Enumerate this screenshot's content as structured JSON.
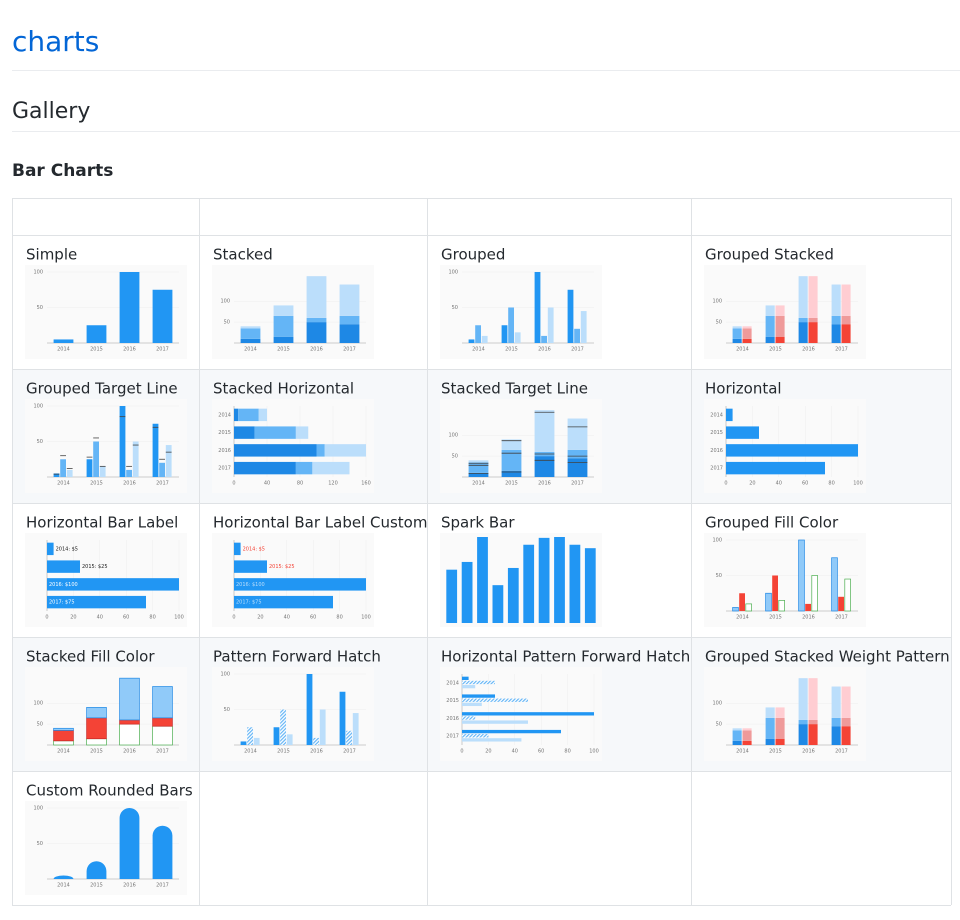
{
  "page": {
    "title": "charts"
  },
  "section": {
    "title": "Gallery"
  },
  "subsection": {
    "title": "Bar Charts"
  },
  "table": {
    "cells": [
      {
        "title": "Simple",
        "thumb": {
          "type": "bar",
          "orientation": "vertical",
          "layout": "single",
          "categories": [
            "2014",
            "2015",
            "2016",
            "2017"
          ],
          "ylim": [
            0,
            100
          ],
          "yticks": [
            50,
            100
          ],
          "series": [
            {
              "color": "#2196f3",
              "values": [
                5,
                25,
                100,
                75
              ]
            }
          ]
        }
      },
      {
        "title": "Stacked",
        "thumb": {
          "type": "bar",
          "orientation": "vertical",
          "layout": "stacked",
          "categories": [
            "2014",
            "2015",
            "2016",
            "2017"
          ],
          "ylim": [
            0,
            170
          ],
          "yticks": [
            50,
            100
          ],
          "series": [
            {
              "color": "#1e88e5",
              "values": [
                10,
                15,
                50,
                45
              ]
            },
            {
              "color": "#64b5f6",
              "values": [
                25,
                50,
                10,
                20
              ]
            },
            {
              "color": "#bbdefb",
              "values": [
                5,
                25,
                100,
                75
              ]
            }
          ]
        }
      },
      {
        "title": "Grouped",
        "thumb": {
          "type": "bar",
          "orientation": "vertical",
          "layout": "grouped",
          "categories": [
            "2014",
            "2015",
            "2016",
            "2017"
          ],
          "ylim": [
            0,
            100
          ],
          "yticks": [
            50,
            100
          ],
          "series": [
            {
              "color": "#2196f3",
              "values": [
                5,
                25,
                100,
                75
              ]
            },
            {
              "color": "#64b5f6",
              "values": [
                25,
                50,
                10,
                20
              ]
            },
            {
              "color": "#bbdefb",
              "values": [
                10,
                15,
                50,
                45
              ]
            }
          ]
        }
      },
      {
        "title": "Grouped Stacked",
        "thumb": {
          "type": "bar",
          "orientation": "vertical",
          "layout": "groupstack",
          "categories": [
            "2014",
            "2015",
            "2016",
            "2017"
          ],
          "ylim": [
            0,
            170
          ],
          "yticks": [
            50,
            100
          ],
          "series": [
            {
              "stack": "A",
              "color": "#1e88e5",
              "values": [
                10,
                15,
                50,
                45
              ]
            },
            {
              "stack": "A",
              "color": "#64b5f6",
              "values": [
                25,
                50,
                10,
                20
              ]
            },
            {
              "stack": "A",
              "color": "#bbdefb",
              "values": [
                5,
                25,
                100,
                75
              ]
            },
            {
              "stack": "B",
              "color": "#f44336",
              "values": [
                10,
                15,
                50,
                45
              ]
            },
            {
              "stack": "B",
              "color": "#ef9a9a",
              "values": [
                25,
                50,
                10,
                20
              ]
            },
            {
              "stack": "B",
              "color": "#ffcdd2",
              "values": [
                5,
                25,
                100,
                75
              ]
            }
          ]
        }
      },
      {
        "title": "Grouped Target Line",
        "thumb": {
          "type": "bar",
          "orientation": "vertical",
          "layout": "grouped",
          "categories": [
            "2014",
            "2015",
            "2016",
            "2017"
          ],
          "ylim": [
            0,
            100
          ],
          "yticks": [
            50,
            100
          ],
          "series": [
            {
              "color": "#2196f3",
              "values": [
                5,
                25,
                100,
                75
              ]
            },
            {
              "color": "#64b5f6",
              "values": [
                25,
                50,
                10,
                20
              ]
            },
            {
              "color": "#bbdefb",
              "values": [
                10,
                15,
                50,
                45
              ]
            },
            {
              "color": "#424242",
              "target": true,
              "values": [
                4,
                28,
                85,
                70
              ]
            },
            {
              "color": "#424242",
              "target": true,
              "values": [
                30,
                55,
                15,
                25
              ]
            },
            {
              "color": "#424242",
              "target": true,
              "values": [
                12,
                15,
                45,
                35
              ]
            }
          ]
        }
      },
      {
        "title": "Stacked Horizontal",
        "thumb": {
          "type": "bar",
          "orientation": "horizontal",
          "layout": "stacked",
          "categories": [
            "2014",
            "2015",
            "2016",
            "2017"
          ],
          "xlim": [
            0,
            160
          ],
          "xticks": [
            0,
            40,
            80,
            120,
            160
          ],
          "series": [
            {
              "color": "#1e88e5",
              "values": [
                5,
                25,
                100,
                75
              ]
            },
            {
              "color": "#64b5f6",
              "values": [
                25,
                50,
                10,
                20
              ]
            },
            {
              "color": "#bbdefb",
              "values": [
                10,
                15,
                50,
                45
              ]
            }
          ]
        }
      },
      {
        "title": "Stacked Target Line",
        "thumb": {
          "type": "bar",
          "orientation": "vertical",
          "layout": "stacked",
          "categories": [
            "2014",
            "2015",
            "2016",
            "2017"
          ],
          "ylim": [
            0,
            170
          ],
          "yticks": [
            50,
            100
          ],
          "series": [
            {
              "color": "#1e88e5",
              "values": [
                10,
                15,
                50,
                45
              ]
            },
            {
              "color": "#64b5f6",
              "values": [
                25,
                50,
                10,
                20
              ]
            },
            {
              "color": "#bbdefb",
              "values": [
                5,
                25,
                100,
                75
              ]
            },
            {
              "color": "#424242",
              "target": true,
              "values": [
                8,
                12,
                40,
                35
              ]
            },
            {
              "color": "#424242",
              "target": true,
              "values": [
                20,
                45,
                15,
                15
              ]
            },
            {
              "color": "#424242",
              "target": true,
              "values": [
                5,
                30,
                100,
                70
              ]
            }
          ]
        }
      },
      {
        "title": "Horizontal",
        "thumb": {
          "type": "bar",
          "orientation": "horizontal",
          "layout": "single",
          "categories": [
            "2014",
            "2015",
            "2016",
            "2017"
          ],
          "xlim": [
            0,
            100
          ],
          "xticks": [
            0,
            20,
            40,
            60,
            80,
            100
          ],
          "series": [
            {
              "color": "#2196f3",
              "values": [
                5,
                25,
                100,
                75
              ]
            }
          ]
        }
      },
      {
        "title": "Horizontal Bar Label",
        "thumb": {
          "type": "bar",
          "orientation": "horizontal",
          "layout": "single",
          "xlim": [
            0,
            100
          ],
          "xticks": [
            0,
            20,
            40,
            60,
            80,
            100
          ],
          "series": [
            {
              "color": "#2196f3",
              "values": [
                5,
                25,
                100,
                75
              ],
              "value_labels": [
                "2014: $5",
                "2015: $25",
                "2016: $100",
                "2017: $75"
              ]
            }
          ]
        }
      },
      {
        "title": "Horizontal Bar Label Custom",
        "thumb": {
          "type": "bar",
          "orientation": "horizontal",
          "layout": "single",
          "label_style": "custom",
          "xlim": [
            0,
            100
          ],
          "xticks": [
            0,
            20,
            40,
            60,
            80,
            100
          ],
          "series": [
            {
              "color": "#2196f3",
              "values": [
                5,
                25,
                100,
                75
              ],
              "value_labels": [
                "2014: $5",
                "2015: $25",
                "2016: $100",
                "2017: $75"
              ]
            }
          ]
        }
      },
      {
        "title": "Spark Bar",
        "thumb": {
          "type": "bar",
          "orientation": "vertical",
          "layout": "single",
          "ylim": [
            0,
            100
          ],
          "series": [
            {
              "color": "#2196f3",
              "values": [
                62,
                71,
                100,
                44,
                64,
                91,
                99,
                100,
                91,
                87
              ]
            }
          ]
        }
      },
      {
        "title": "Grouped Fill Color",
        "thumb": {
          "type": "bar",
          "orientation": "vertical",
          "layout": "grouped",
          "categories": [
            "2014",
            "2015",
            "2016",
            "2017"
          ],
          "ylim": [
            0,
            100
          ],
          "yticks": [
            50,
            100
          ],
          "series": [
            {
              "color": "#90caf9",
              "stroke": "#1e88e5",
              "values": [
                5,
                25,
                100,
                75
              ]
            },
            {
              "color": "#f44336",
              "values": [
                25,
                50,
                10,
                20
              ]
            },
            {
              "color": "#ffffff",
              "stroke": "#4caf50",
              "values": [
                10,
                15,
                50,
                45
              ]
            }
          ]
        }
      },
      {
        "title": "Stacked Fill Color",
        "thumb": {
          "type": "bar",
          "orientation": "vertical",
          "layout": "stacked",
          "categories": [
            "2014",
            "2015",
            "2016",
            "2017"
          ],
          "ylim": [
            0,
            170
          ],
          "yticks": [
            50,
            100
          ],
          "series": [
            {
              "color": "#ffffff",
              "stroke": "#4caf50",
              "values": [
                10,
                15,
                50,
                45
              ]
            },
            {
              "color": "#f44336",
              "stroke": "#c62828",
              "values": [
                25,
                50,
                10,
                20
              ]
            },
            {
              "color": "#90caf9",
              "stroke": "#1e88e5",
              "values": [
                5,
                25,
                100,
                75
              ]
            }
          ]
        }
      },
      {
        "title": "Pattern Forward Hatch",
        "thumb": {
          "type": "bar",
          "orientation": "vertical",
          "layout": "grouped",
          "categories": [
            "2014",
            "2015",
            "2016",
            "2017"
          ],
          "ylim": [
            0,
            100
          ],
          "yticks": [
            50,
            100
          ],
          "series": [
            {
              "color": "#2196f3",
              "values": [
                5,
                25,
                100,
                75
              ]
            },
            {
              "color": "#64b5f6",
              "pattern": "hatch",
              "values": [
                25,
                50,
                10,
                20
              ]
            },
            {
              "color": "#bbdefb",
              "values": [
                10,
                15,
                50,
                45
              ]
            }
          ]
        }
      },
      {
        "title": "Horizontal Pattern Forward Hatch",
        "thumb": {
          "type": "bar",
          "orientation": "horizontal",
          "layout": "grouped",
          "categories": [
            "2014",
            "2015",
            "2016",
            "2017"
          ],
          "xlim": [
            0,
            100
          ],
          "xticks": [
            0,
            20,
            40,
            60,
            80,
            100
          ],
          "series": [
            {
              "color": "#2196f3",
              "values": [
                5,
                25,
                100,
                75
              ]
            },
            {
              "color": "#64b5f6",
              "pattern": "hatch",
              "values": [
                25,
                50,
                10,
                20
              ]
            },
            {
              "color": "#bbdefb",
              "values": [
                10,
                15,
                50,
                45
              ]
            }
          ]
        }
      },
      {
        "title": "Grouped Stacked Weight Pattern",
        "thumb": {
          "type": "bar",
          "orientation": "vertical",
          "layout": "groupstack",
          "categories": [
            "2014",
            "2015",
            "2016",
            "2017"
          ],
          "ylim": [
            0,
            170
          ],
          "yticks": [
            50,
            100
          ],
          "series": [
            {
              "stack": "A",
              "color": "#1e88e5",
              "values": [
                10,
                15,
                50,
                45
              ]
            },
            {
              "stack": "A",
              "color": "#64b5f6",
              "values": [
                25,
                50,
                10,
                20
              ]
            },
            {
              "stack": "A",
              "color": "#bbdefb",
              "values": [
                5,
                25,
                100,
                75
              ]
            },
            {
              "stack": "B",
              "color": "#f44336",
              "values": [
                10,
                15,
                50,
                45
              ]
            },
            {
              "stack": "B",
              "color": "#ef9a9a",
              "values": [
                25,
                50,
                10,
                20
              ]
            },
            {
              "stack": "B",
              "color": "#ffcdd2",
              "values": [
                5,
                25,
                100,
                75
              ]
            }
          ]
        }
      },
      {
        "title": "Custom Rounded Bars",
        "thumb": {
          "type": "bar",
          "orientation": "vertical",
          "layout": "single",
          "rounded": true,
          "categories": [
            "2014",
            "2015",
            "2016",
            "2017"
          ],
          "ylim": [
            0,
            100
          ],
          "yticks": [
            50,
            100
          ],
          "series": [
            {
              "color": "#2196f3",
              "values": [
                5,
                25,
                100,
                75
              ]
            }
          ]
        }
      }
    ]
  }
}
